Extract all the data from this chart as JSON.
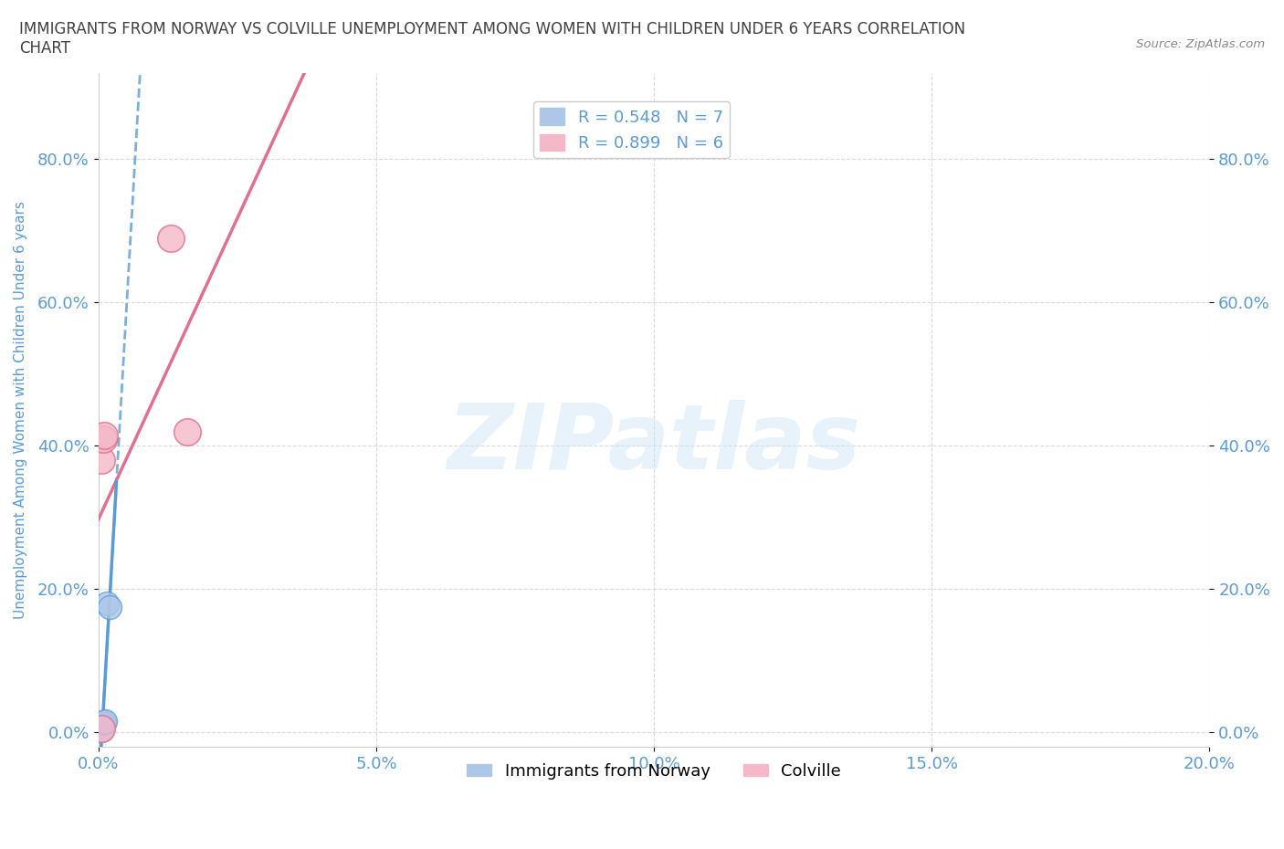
{
  "title": "IMMIGRANTS FROM NORWAY VS COLVILLE UNEMPLOYMENT AMONG WOMEN WITH CHILDREN UNDER 6 YEARS CORRELATION\nCHART",
  "source_text": "Source: ZipAtlas.com",
  "ylabel": "Unemployment Among Women with Children Under 6 years",
  "watermark": "ZIPatlas",
  "legend_entries": [
    {
      "label": "R = 0.548   N = 7",
      "color": "#aec6e8"
    },
    {
      "label": "R = 0.899   N = 6",
      "color": "#f4b8c8"
    }
  ],
  "legend_bottom": [
    {
      "label": "Immigrants from Norway",
      "color": "#aec6e8"
    },
    {
      "label": "Colville",
      "color": "#f4b8c8"
    }
  ],
  "norway_points": [
    [
      0.0005,
      0.005
    ],
    [
      0.0006,
      0.003
    ],
    [
      0.0008,
      0.013
    ],
    [
      0.001,
      0.015
    ],
    [
      0.0012,
      0.016
    ],
    [
      0.0015,
      0.18
    ],
    [
      0.002,
      0.175
    ]
  ],
  "colville_points": [
    [
      0.0005,
      0.005
    ],
    [
      0.0006,
      0.38
    ],
    [
      0.0008,
      0.41
    ],
    [
      0.001,
      0.415
    ],
    [
      0.013,
      0.69
    ],
    [
      0.016,
      0.42
    ]
  ],
  "norway_R": 0.548,
  "norway_N": 7,
  "colville_R": 0.899,
  "colville_N": 6,
  "xlim": [
    0.0,
    0.2
  ],
  "ylim": [
    -0.02,
    0.92
  ],
  "x_ticks": [
    0.0,
    0.05,
    0.1,
    0.15,
    0.2
  ],
  "y_ticks": [
    0.0,
    0.2,
    0.4,
    0.6,
    0.8
  ],
  "norway_color": "#aec6e8",
  "norway_line_color": "#5b9bd5",
  "colville_color": "#f4b8c8",
  "colville_line_color": "#e07090",
  "background_color": "#ffffff",
  "grid_color": "#d0d0d0",
  "title_color": "#404040",
  "axis_label_color": "#5b9bd5",
  "tick_label_color": "#5b9bd5"
}
